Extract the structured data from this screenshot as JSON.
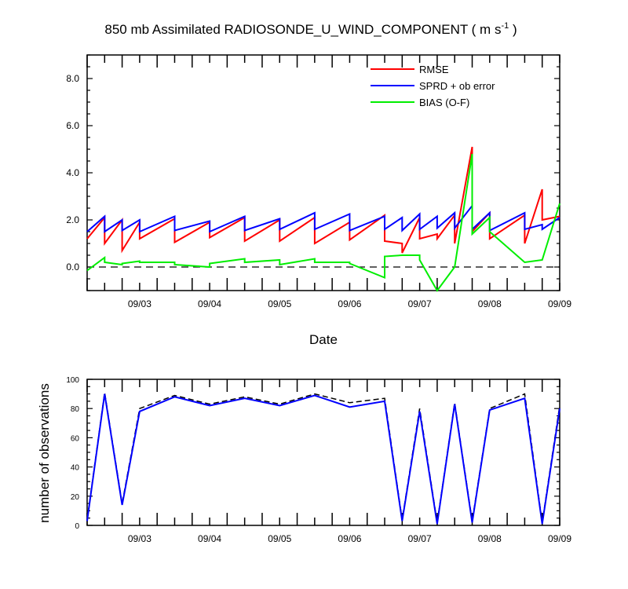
{
  "chart_data": [
    {
      "type": "line",
      "title": "850 mb Assimilated RADIOSONDE_U_WIND_COMPONENT ( m s",
      "title_superscript": "-1",
      "title_suffix": " )",
      "xlabel": "Date",
      "ylabel": "",
      "xlim": [
        0,
        6.75
      ],
      "ylim": [
        -1,
        9
      ],
      "yticks": [
        0,
        2,
        4,
        6,
        8
      ],
      "ytick_labels": [
        "0.0",
        "2.0",
        "4.0",
        "6.0",
        "8.0"
      ],
      "xticks": [
        0.75,
        1.75,
        2.75,
        3.75,
        4.75,
        5.75,
        6.75
      ],
      "xtick_labels": [
        "09/03",
        "09/04",
        "09/05",
        "09/06",
        "09/07",
        "09/08",
        "09/09"
      ],
      "reference_line": 0,
      "legend": [
        "RMSE",
        "SPRD + ob error",
        "BIAS (O-F)"
      ],
      "series": [
        {
          "name": "RMSE",
          "color": "#ff0000",
          "x": [
            0,
            0.25,
            0.25,
            0.5,
            0.5,
            0.75,
            0.75,
            1.25,
            1.25,
            1.75,
            1.75,
            2.25,
            2.25,
            2.75,
            2.75,
            3.25,
            3.25,
            3.75,
            3.75,
            4.25,
            4.25,
            4.5,
            4.5,
            4.75,
            4.75,
            5.0,
            5.0,
            5.25,
            5.25,
            5.5,
            5.5,
            5.75,
            5.75,
            6.25,
            6.25,
            6.5,
            6.5,
            6.75
          ],
          "y": [
            1.2,
            2.1,
            1.0,
            2.0,
            0.7,
            1.9,
            1.2,
            2.05,
            1.05,
            1.9,
            1.25,
            2.1,
            1.1,
            2.0,
            1.1,
            2.1,
            1.0,
            1.9,
            1.15,
            2.2,
            1.1,
            1.0,
            0.6,
            2.1,
            1.2,
            1.4,
            1.2,
            2.2,
            1.0,
            5.1,
            1.5,
            2.3,
            1.2,
            2.2,
            1.0,
            3.3,
            2.0,
            2.15
          ]
        },
        {
          "name": "SPRD + ob error",
          "color": "#0000ff",
          "x": [
            0,
            0.25,
            0.25,
            0.5,
            0.5,
            0.75,
            0.75,
            1.25,
            1.25,
            1.75,
            1.75,
            2.25,
            2.25,
            2.75,
            2.75,
            3.25,
            3.25,
            3.75,
            3.75,
            4.25,
            4.25,
            4.5,
            4.5,
            4.75,
            4.75,
            5.0,
            5.0,
            5.25,
            5.25,
            5.5,
            5.5,
            5.75,
            5.75,
            6.25,
            6.25,
            6.5,
            6.5,
            6.75
          ],
          "y": [
            1.5,
            2.15,
            1.5,
            2.0,
            1.55,
            2.0,
            1.5,
            2.15,
            1.55,
            1.95,
            1.5,
            2.15,
            1.55,
            2.05,
            1.6,
            2.3,
            1.6,
            2.25,
            1.55,
            2.15,
            1.6,
            2.1,
            1.55,
            2.25,
            1.6,
            2.15,
            1.65,
            2.3,
            1.65,
            2.6,
            1.6,
            2.3,
            1.55,
            2.3,
            1.6,
            1.8,
            1.6,
            2.1
          ]
        },
        {
          "name": "BIAS (O-F)",
          "color": "#00ee00",
          "x": [
            0,
            0.25,
            0.25,
            0.5,
            0.5,
            0.75,
            0.75,
            1.25,
            1.25,
            1.75,
            1.75,
            2.25,
            2.25,
            2.75,
            2.75,
            3.25,
            3.25,
            3.75,
            3.75,
            4.25,
            4.25,
            4.5,
            4.5,
            4.75,
            4.75,
            5.0,
            5.0,
            5.25,
            5.25,
            5.5,
            5.5,
            5.75,
            5.75,
            6.25,
            6.25,
            6.5,
            6.5,
            6.75
          ],
          "y": [
            -0.15,
            0.4,
            0.2,
            0.1,
            0.15,
            0.25,
            0.2,
            0.2,
            0.1,
            0.0,
            0.15,
            0.35,
            0.2,
            0.3,
            0.1,
            0.35,
            0.2,
            0.2,
            0.15,
            -0.45,
            0.45,
            0.5,
            0.5,
            0.5,
            0.3,
            -1.0,
            -1.0,
            0.0,
            0.0,
            4.8,
            1.4,
            2.1,
            1.5,
            0.2,
            0.2,
            0.3,
            0.3,
            2.7
          ]
        }
      ]
    },
    {
      "type": "line",
      "title": "",
      "xlabel": "",
      "ylabel": "number of observations",
      "xlim": [
        0,
        6.75
      ],
      "ylim": [
        0,
        100
      ],
      "yticks": [
        0,
        20,
        40,
        60,
        80,
        100
      ],
      "ytick_labels": [
        "0",
        "20",
        "40",
        "60",
        "80",
        "100"
      ],
      "xticks": [
        0.75,
        1.75,
        2.75,
        3.75,
        4.75,
        5.75,
        6.75
      ],
      "xtick_labels": [
        "09/03",
        "09/04",
        "09/05",
        "09/06",
        "09/07",
        "09/08",
        "09/09"
      ],
      "series": [
        {
          "name": "observations (dashed)",
          "color": "#000000",
          "x": [
            0,
            0.25,
            0.5,
            0.75,
            1.25,
            1.75,
            2.25,
            2.75,
            3.25,
            3.75,
            4.25,
            4.5,
            4.75,
            5.0,
            5.25,
            5.5,
            5.75,
            6.25,
            6.5,
            6.75
          ],
          "y": [
            4,
            91,
            15,
            80,
            89,
            83,
            88,
            83,
            90,
            84,
            87,
            4,
            80,
            2,
            84,
            3,
            80,
            90,
            2,
            82
          ]
        },
        {
          "name": "observations (solid)",
          "color": "#0000ff",
          "x": [
            0,
            0.25,
            0.5,
            0.75,
            1.25,
            1.75,
            2.25,
            2.75,
            3.25,
            3.75,
            4.25,
            4.5,
            4.75,
            5.0,
            5.25,
            5.5,
            5.75,
            6.25,
            6.5,
            6.75
          ],
          "y": [
            3,
            90,
            14,
            78,
            88,
            82,
            87,
            82,
            89,
            81,
            85,
            3,
            78,
            1,
            83,
            2,
            79,
            87,
            1,
            80
          ]
        }
      ]
    }
  ]
}
